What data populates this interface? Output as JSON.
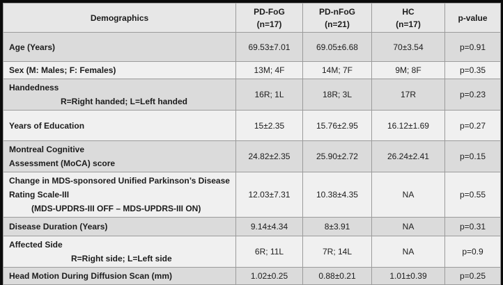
{
  "table": {
    "columns": [
      {
        "title": "Demographics"
      },
      {
        "title": "PD-FoG",
        "subtitle": "(n=17)"
      },
      {
        "title": "PD-nFoG",
        "subtitle": "(n=21)"
      },
      {
        "title": "HC",
        "subtitle": "(n=17)"
      },
      {
        "title": "p-value"
      }
    ],
    "rows": [
      {
        "label": "Age (Years)",
        "values": [
          "69.53±7.01",
          "69.05±6.68",
          "70±3.54",
          "p=0.91"
        ]
      },
      {
        "label": "Sex (M: Males; F: Females)",
        "values": [
          "13M; 4F",
          "14M; 7F",
          "9M; 8F",
          "p=0.35"
        ]
      },
      {
        "label": "Handedness",
        "sublabel": "R=Right handed; L=Left handed",
        "values": [
          "16R; 1L",
          "18R; 3L",
          "17R",
          "p=0.23"
        ]
      },
      {
        "label": "Years of Education",
        "values": [
          "15±2.35",
          "15.76±2.95",
          "16.12±1.69",
          "p=0.27"
        ]
      },
      {
        "label": "Montreal Cognitive",
        "label2": "Assessment (MoCA) score",
        "values": [
          "24.82±2.35",
          "25.90±2.72",
          "26.24±2.41",
          "p=0.15"
        ]
      },
      {
        "label": "Change in MDS-sponsored Unified Parkinson’s Disease",
        "label2": "Rating Scale-III",
        "sublabel": "(MDS-UPDRS-III OFF – MDS-UPDRS-III ON)",
        "values": [
          "12.03±7.31",
          "10.38±4.35",
          "NA",
          "p=0.55"
        ]
      },
      {
        "label": "Disease Duration (Years)",
        "values": [
          "9.14±4.34",
          "8±3.91",
          "NA",
          "p=0.31"
        ]
      },
      {
        "label": "Affected Side",
        "sublabel": "R=Right side; L=Left side",
        "values": [
          "6R; 11L",
          "7R; 14L",
          "NA",
          "p=0.9"
        ]
      },
      {
        "label": "Head Motion During Diffusion Scan (mm)",
        "values": [
          "1.02±0.25",
          "0.88±0.21",
          "1.01±0.39",
          "p=0.25"
        ]
      }
    ],
    "colors": {
      "header_bg": "#e7e7e7",
      "row_shaded_bg": "#dbdbdb",
      "row_light_bg": "#f0f0f0",
      "grid_line": "#9b9b9b",
      "outer_border": "#0b0b0b"
    }
  }
}
